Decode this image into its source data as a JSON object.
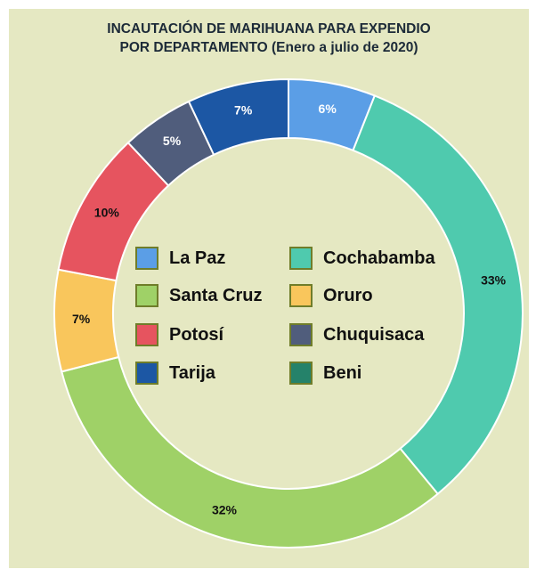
{
  "chart_data": {
    "type": "pie",
    "title_lines": [
      "INCAUTACIÓN DE MARIHUANA PARA EXPENDIO",
      "POR DEPARTAMENTO (Enero a julio de 2020)"
    ],
    "donut": true,
    "categories": [
      "La Paz",
      "Cochabamba",
      "Santa Cruz",
      "Oruro",
      "Potosí",
      "Chuquisaca",
      "Tarija",
      "Beni"
    ],
    "values": [
      6,
      33,
      32,
      7,
      10,
      5,
      7,
      0
    ],
    "data_labels": [
      "6%",
      "33%",
      "32%",
      "7%",
      "10%",
      "5%",
      "7%",
      ""
    ],
    "colors": [
      "#5b9ee6",
      "#4fcaae",
      "#9fd167",
      "#f9c65c",
      "#e6545f",
      "#505d7c",
      "#1c57a4",
      "#25826a"
    ],
    "label_colors": [
      "#ffffff",
      "#111111",
      "#111111",
      "#111111",
      "#111111",
      "#ffffff",
      "#ffffff",
      "#ffffff"
    ],
    "legend": [
      {
        "label": "La Paz",
        "color": "#5b9ee6"
      },
      {
        "label": "Cochabamba",
        "color": "#4fcaae"
      },
      {
        "label": "Santa Cruz",
        "color": "#9fd167"
      },
      {
        "label": "Oruro",
        "color": "#f9c65c"
      },
      {
        "label": "Potosí",
        "color": "#e6545f"
      },
      {
        "label": "Chuquisaca",
        "color": "#505d7c"
      },
      {
        "label": "Tarija",
        "color": "#1c57a4"
      },
      {
        "label": "Beni",
        "color": "#25826a"
      }
    ],
    "legend_placement": "center",
    "background": "#e5e8c2"
  }
}
